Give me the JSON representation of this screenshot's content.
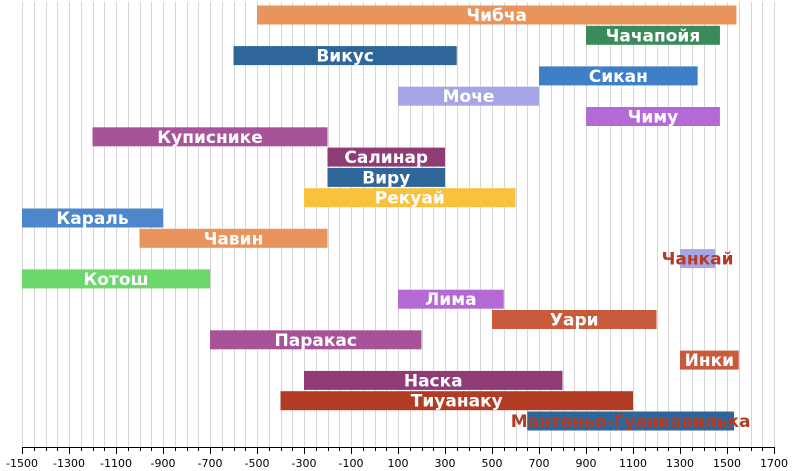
{
  "chart_data": {
    "type": "timeline",
    "title": "",
    "xlabel": "",
    "ylabel": "",
    "xlim": [
      -1500,
      1700
    ],
    "x_ticks": [
      -1500,
      -1300,
      -1100,
      -900,
      -700,
      -500,
      -300,
      -100,
      100,
      300,
      500,
      700,
      900,
      1100,
      1300,
      1500,
      1700
    ],
    "grid": true,
    "series": [
      {
        "name": "Чибча",
        "start": -500,
        "end": 1540,
        "color": "#e8945c",
        "label_color": "#ffffff"
      },
      {
        "name": "Чачапойя",
        "start": 900,
        "end": 1470,
        "color": "#3a8a5a",
        "label_color": "#ffffff"
      },
      {
        "name": "Викус",
        "start": -600,
        "end": 350,
        "color": "#2f6699",
        "label_color": "#ffffff"
      },
      {
        "name": "Сикан",
        "start": 700,
        "end": 1375,
        "color": "#3f7fc8",
        "label_color": "#ffffff"
      },
      {
        "name": "Моче",
        "start": 100,
        "end": 700,
        "color": "#a6a6e6",
        "label_color": "#ffffff"
      },
      {
        "name": "Чиму",
        "start": 900,
        "end": 1470,
        "color": "#b469d6",
        "label_color": "#ffffff"
      },
      {
        "name": "Куписнике",
        "start": -1200,
        "end": -200,
        "color": "#a8529a",
        "label_color": "#ffffff"
      },
      {
        "name": "Салинар",
        "start": -200,
        "end": 300,
        "color": "#8e3b76",
        "label_color": "#ffffff"
      },
      {
        "name": "Виру",
        "start": -200,
        "end": 300,
        "color": "#2f6699",
        "label_color": "#ffffff"
      },
      {
        "name": "Рекуай",
        "start": -300,
        "end": 600,
        "color": "#f9c13c",
        "label_color": "#ffffff"
      },
      {
        "name": "Караль",
        "start": -1500,
        "end": -900,
        "color": "#4e86cc",
        "label_color": "#ffffff"
      },
      {
        "name": "Чавин",
        "start": -1000,
        "end": -200,
        "color": "#e8945c",
        "label_color": "#ffffff"
      },
      {
        "name": "Чанкай",
        "start": 1300,
        "end": 1450,
        "color": "#a6a6e6",
        "label_color": "#b23b24"
      },
      {
        "name": "Котош",
        "start": -1500,
        "end": -700,
        "color": "#6ad86a",
        "label_color": "#ffffff"
      },
      {
        "name": "Лима",
        "start": 100,
        "end": 550,
        "color": "#b469d6",
        "label_color": "#ffffff"
      },
      {
        "name": "Уари",
        "start": 500,
        "end": 1200,
        "color": "#c95a3c",
        "label_color": "#ffffff"
      },
      {
        "name": "Паракас",
        "start": -700,
        "end": 200,
        "color": "#a8529a",
        "label_color": "#ffffff"
      },
      {
        "name": "Инки",
        "start": 1300,
        "end": 1550,
        "color": "#c95a3c",
        "label_color": "#ffffff"
      },
      {
        "name": "Наска",
        "start": -300,
        "end": 800,
        "color": "#8e3b76",
        "label_color": "#ffffff"
      },
      {
        "name": "Тиуанаку",
        "start": -400,
        "end": 1100,
        "color": "#b23b24",
        "label_color": "#ffffff"
      },
      {
        "name": "Мантеньо-Гуанкавилька",
        "start": 650,
        "end": 1530,
        "color": "#2f6699",
        "label_color": "#b23b24"
      }
    ]
  }
}
